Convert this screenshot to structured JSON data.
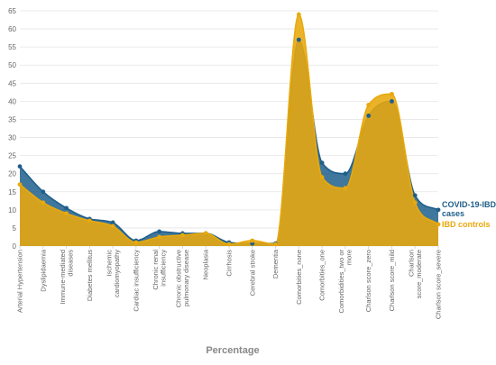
{
  "chart_data": {
    "type": "area",
    "xlabel": "Percentage",
    "ylabel": "",
    "ylim": [
      0,
      65
    ],
    "yticks": [
      0,
      5,
      10,
      15,
      20,
      25,
      30,
      35,
      40,
      45,
      50,
      55,
      60,
      65
    ],
    "grid": "horizontal",
    "legend": "right, at line ends",
    "categories": [
      "Arterial Hypertension",
      "Dyslipidaemia",
      "Immune-mediated diseases",
      "Diabetes mellitus",
      "Ischemic cardiomyopathy",
      "Cardiac insufficiency",
      "Chronic renal insufficiency",
      "Chronic obstructive pulmonary disease",
      "Neoplasia",
      "Cirrhosis",
      "Cerebral stroke",
      "Dementia",
      "Comorbities_none",
      "Comorbities_one",
      "Comorbidities_two or more",
      "Charlson score_zero",
      "Charlson score_mild",
      "Charlson score_moderate",
      "Charlson score_severe"
    ],
    "series": [
      {
        "name": "COVID-19-IBD cases",
        "color": "#1f5f8b",
        "values": [
          22,
          15,
          10.5,
          7.5,
          6.5,
          1.5,
          4,
          3.5,
          3.5,
          1,
          0.7,
          0.7,
          57,
          23,
          20,
          36,
          40,
          14,
          10
        ]
      },
      {
        "name": "IBD controls",
        "color": "#e8a90c",
        "values": [
          17,
          12,
          9,
          7,
          5.5,
          1,
          2.5,
          3,
          3.5,
          0.5,
          1.5,
          0.5,
          64,
          19,
          16,
          39,
          42,
          12,
          6
        ]
      }
    ],
    "legend_labels": [
      "COVID-19-IBD cases",
      "IBD controls"
    ]
  }
}
